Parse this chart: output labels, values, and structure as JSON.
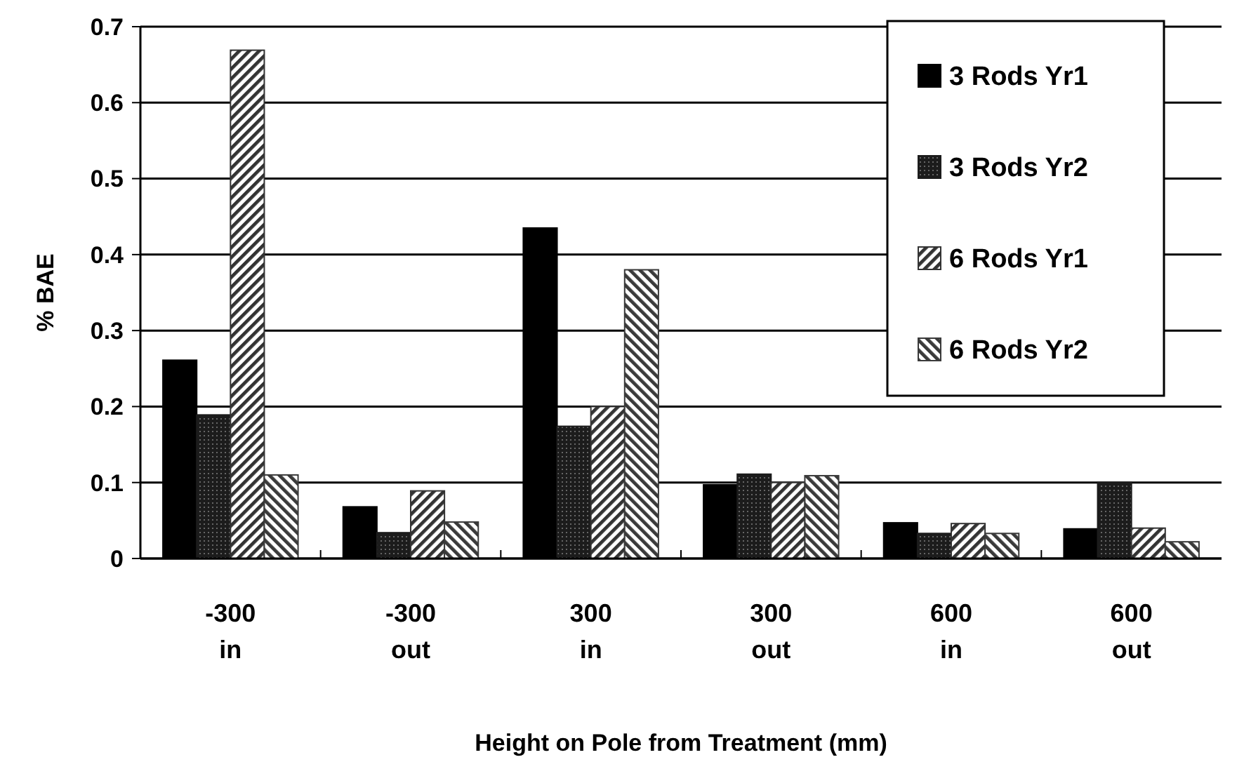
{
  "chart_data": {
    "type": "bar",
    "xlabel": "Height on Pole from Treatment (mm)",
    "ylabel": "% BAE",
    "categories": [
      "-300\nin",
      "-300\nout",
      "300\nin",
      "300\nout",
      "600\nin",
      "600\nout"
    ],
    "series": [
      {
        "name": "3 Rods Yr1",
        "color": "#000000",
        "values": [
          0.261,
          0.068,
          0.435,
          0.097,
          0.047,
          0.039
        ]
      },
      {
        "name": "3 Rods Yr2",
        "color": "#1c1c1c",
        "values": [
          0.189,
          0.034,
          0.174,
          0.111,
          0.033,
          0.1
        ]
      },
      {
        "name": "6 Rods Yr1",
        "color": "#333333",
        "values": [
          0.669,
          0.089,
          0.2,
          0.1,
          0.046,
          0.04
        ]
      },
      {
        "name": "6 Rods Yr2",
        "color": "#3a3a3a",
        "values": [
          0.11,
          0.048,
          0.38,
          0.109,
          0.033,
          0.022
        ]
      }
    ],
    "ylim": [
      0,
      0.7
    ],
    "yticks": [
      {
        "value": 0,
        "label": "0"
      },
      {
        "value": 0.1,
        "label": "0.1"
      },
      {
        "value": 0.2,
        "label": "0.2"
      },
      {
        "value": 0.3,
        "label": "0.3"
      },
      {
        "value": 0.4,
        "label": "0.4"
      },
      {
        "value": 0.5,
        "label": "0.5"
      },
      {
        "value": 0.6,
        "label": "0.6"
      },
      {
        "value": 0.7,
        "label": "0.7"
      }
    ],
    "grid": "y",
    "legend": "top right"
  }
}
